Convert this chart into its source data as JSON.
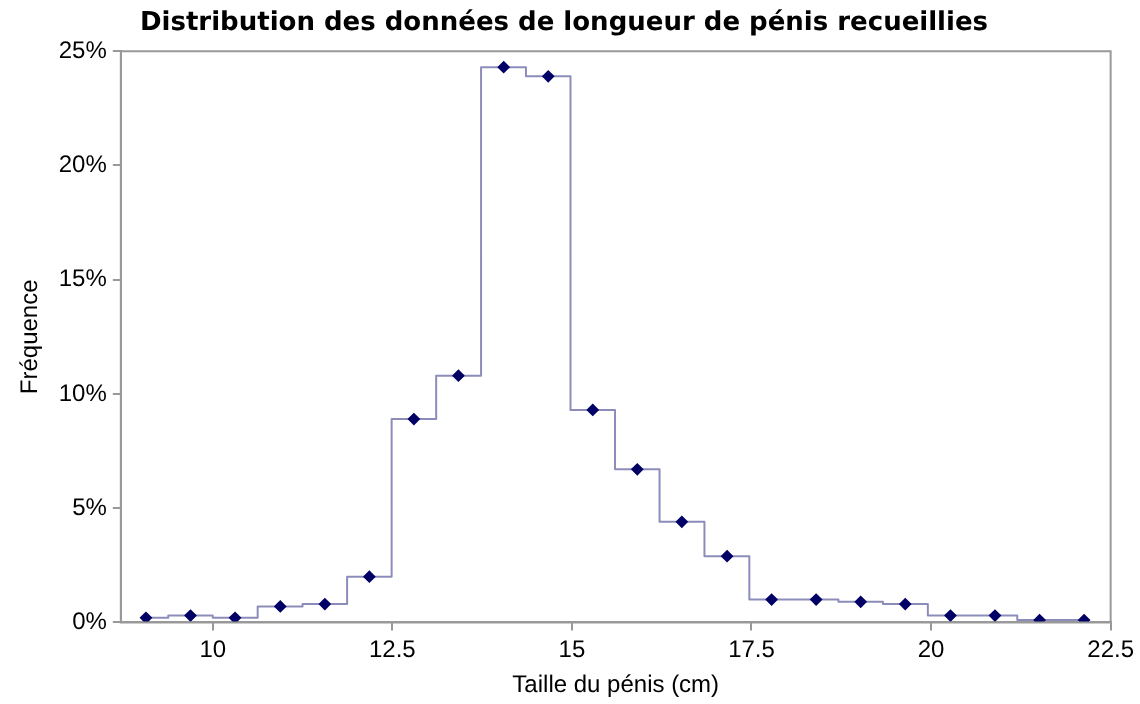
{
  "chart_data": {
    "type": "step",
    "title": "Distribution des données de longueur de pénis recueillies",
    "xlabel": "Taille du pénis (cm)",
    "ylabel": "Fréquence",
    "x": [
      9.07,
      9.69,
      10.31,
      10.94,
      11.56,
      12.18,
      12.8,
      13.42,
      14.05,
      14.67,
      15.29,
      15.91,
      16.53,
      17.16,
      17.78,
      18.4,
      19.02,
      19.64,
      20.27,
      20.89,
      21.51,
      22.13
    ],
    "series": [
      {
        "color": "#000066",
        "values": [
          0.2,
          0.3,
          0.2,
          0.7,
          0.8,
          2.0,
          8.9,
          10.8,
          24.3,
          23.9,
          9.3,
          6.7,
          4.4,
          2.9,
          1.0,
          1.0,
          0.9,
          0.8,
          0.3,
          0.3,
          0.1,
          0.1
        ]
      }
    ],
    "xlim": [
      8.72,
      22.5
    ],
    "xticks": [
      10,
      12.5,
      15,
      17.5,
      20,
      22.5
    ],
    "ylim": [
      0,
      25
    ],
    "yticks": [
      {
        "value": 0,
        "label": "0%"
      },
      {
        "value": 5,
        "label": "5%"
      },
      {
        "value": 10,
        "label": "10%"
      },
      {
        "value": 15,
        "label": "15%"
      },
      {
        "value": 20,
        "label": "20%"
      },
      {
        "value": 25,
        "label": "25%"
      }
    ],
    "grid": false,
    "legend": false,
    "marker": "diamond",
    "line_style": "solid"
  }
}
